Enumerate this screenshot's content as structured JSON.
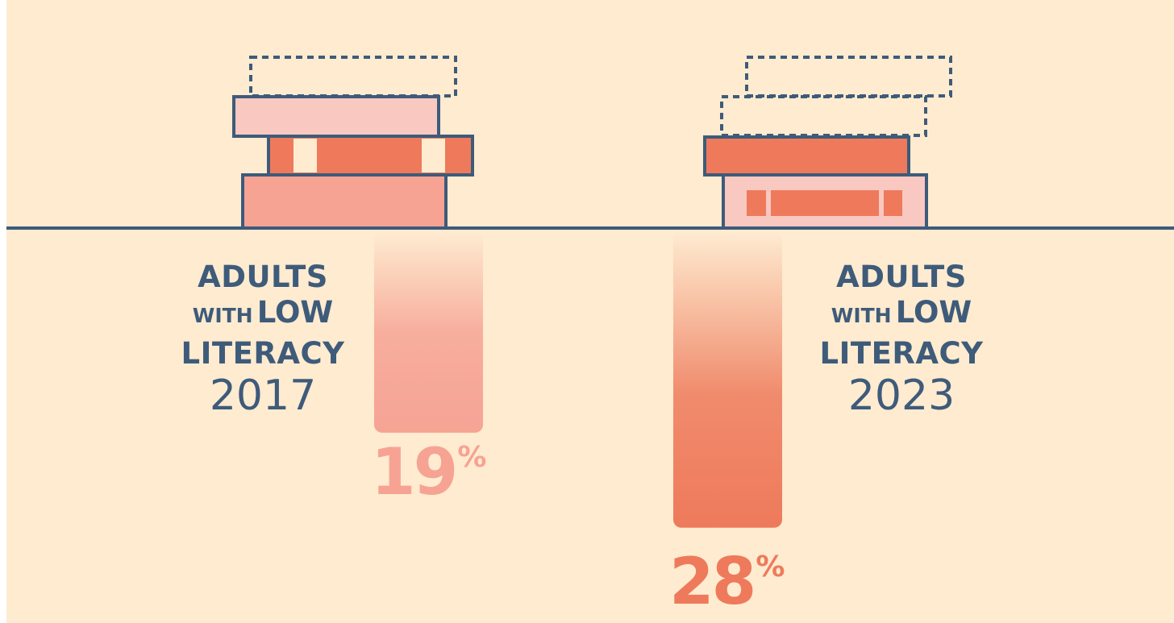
{
  "chart_data": {
    "type": "bar",
    "orientation": "vertical-downward",
    "categories": [
      "2017",
      "2023"
    ],
    "values": [
      19,
      28
    ],
    "value_labels": [
      "19",
      "28"
    ],
    "unit": "%",
    "category_labels": [
      {
        "line1": "ADULTS",
        "line2_small": "WITH",
        "line2_large": "LOW",
        "line3": "LITERACY",
        "year": "2017"
      },
      {
        "line1": "ADULTS",
        "line2_small": "WITH",
        "line2_large": "LOW",
        "line3": "LITERACY",
        "year": "2023"
      }
    ],
    "colors": {
      "background": "#feebd0",
      "baseline": "#3e5b7a",
      "bar_2017": "#f6a394",
      "bar_2023": "#ee7a5b",
      "book_light_pink": "#f9c8c1",
      "book_salmon": "#f6a394",
      "book_orange": "#ee7a5b",
      "outline": "#3e5b7a"
    }
  }
}
